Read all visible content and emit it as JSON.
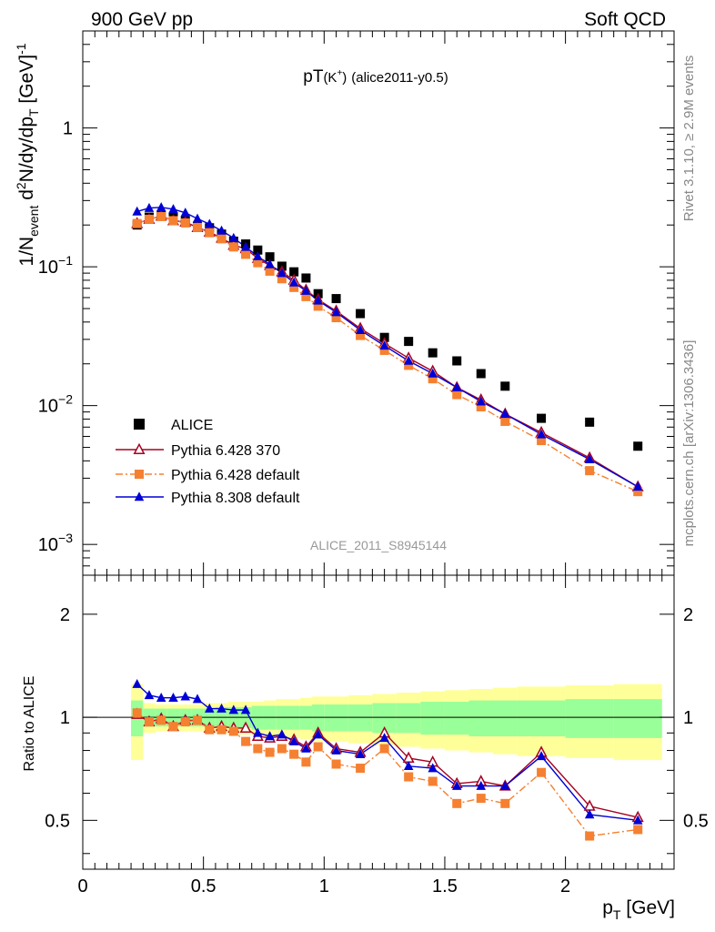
{
  "header": {
    "left": "900 GeV pp",
    "right": "Soft QCD"
  },
  "side_labels": {
    "rivet": "Rivet 3.1.10, ≥ 2.9M events",
    "mcplots": "mcplots.cern.ch [arXiv:1306.3436]"
  },
  "plot_title": {
    "main": "pT",
    "particle": "(K",
    "charge": "+",
    "close": ")",
    "tag": "(alice2011-y0.5)"
  },
  "analysis_label": "ALICE_2011_S8945144",
  "y_axis_label": {
    "a": "1/N",
    "a_sub": "event",
    "b": " d",
    "b_sup": "2",
    "c": "N/dy/dp",
    "c_sub": "T",
    "d": " [GeV]",
    "d_sup": "-1"
  },
  "x_axis_label": {
    "main": "p",
    "sub": "T",
    "unit": " [GeV]"
  },
  "ratio_y_label": "Ratio to ALICE",
  "top_y_ticks": [
    {
      "value": 1,
      "mant": "1",
      "exp": ""
    },
    {
      "value": 0.1,
      "mant": "10",
      "exp": "−1"
    },
    {
      "value": 0.01,
      "mant": "10",
      "exp": "−2"
    },
    {
      "value": 0.001,
      "mant": "10",
      "exp": "−3"
    }
  ],
  "ratio_y_ticks": [
    {
      "value": 2,
      "label": "2"
    },
    {
      "value": 1,
      "label": "1"
    },
    {
      "value": 0.5,
      "label": "0.5"
    }
  ],
  "x_ticks": [
    {
      "value": 0,
      "label": "0"
    },
    {
      "value": 0.5,
      "label": "0.5"
    },
    {
      "value": 1,
      "label": "1"
    },
    {
      "value": 1.5,
      "label": "1.5"
    },
    {
      "value": 2,
      "label": "2"
    }
  ],
  "legend": [
    {
      "label": "ALICE",
      "marker": "square",
      "color": "#000000",
      "line": "none"
    },
    {
      "label": "Pythia 6.428 370",
      "marker": "open-triangle",
      "color": "#a50021",
      "line": "solid"
    },
    {
      "label": "Pythia 6.428 default",
      "marker": "square",
      "color": "#f58031",
      "line": "dashdot"
    },
    {
      "label": "Pythia 8.308 default",
      "marker": "triangle",
      "color": "#0000d6",
      "line": "solid"
    }
  ],
  "colors": {
    "band_inner": "#99ff99",
    "band_outer": "#ffff99",
    "grey_text": "#888888"
  },
  "chart_data": [
    {
      "type": "scatter",
      "scale": "log",
      "xlim": [
        0,
        2.45
      ],
      "ylim": [
        0.0006,
        5
      ],
      "x": [
        0.225,
        0.275,
        0.325,
        0.375,
        0.425,
        0.475,
        0.525,
        0.575,
        0.625,
        0.675,
        0.725,
        0.775,
        0.825,
        0.875,
        0.925,
        0.975,
        1.05,
        1.15,
        1.25,
        1.35,
        1.45,
        1.55,
        1.65,
        1.75,
        1.9,
        2.1,
        2.3
      ],
      "series": [
        {
          "name": "ALICE",
          "values": [
            0.2,
            0.228,
            0.235,
            0.228,
            0.214,
            0.196,
            0.191,
            0.172,
            0.153,
            0.146,
            0.132,
            0.118,
            0.101,
            0.092,
            0.083,
            0.064,
            0.059,
            0.046,
            0.031,
            0.029,
            0.024,
            0.021,
            0.017,
            0.0138,
            0.0081,
            0.0076,
            0.0051
          ]
        },
        {
          "name": "Pythia 6.428 370",
          "values": [
            0.205,
            0.22,
            0.232,
            0.215,
            0.21,
            0.192,
            0.178,
            0.161,
            0.143,
            0.135,
            0.115,
            0.102,
            0.092,
            0.08,
            0.068,
            0.058,
            0.048,
            0.036,
            0.028,
            0.022,
            0.0177,
            0.0135,
            0.011,
            0.0087,
            0.0064,
            0.0042,
            0.0026
          ]
        },
        {
          "name": "Pythia 6.428 default",
          "values": [
            0.205,
            0.22,
            0.23,
            0.215,
            0.207,
            0.192,
            0.176,
            0.159,
            0.139,
            0.123,
            0.107,
            0.093,
            0.082,
            0.071,
            0.061,
            0.052,
            0.043,
            0.032,
            0.025,
            0.0195,
            0.0156,
            0.012,
            0.0098,
            0.0077,
            0.0056,
            0.0034,
            0.0024
          ]
        },
        {
          "name": "Pythia 8.308 default",
          "values": [
            0.25,
            0.265,
            0.268,
            0.26,
            0.245,
            0.222,
            0.203,
            0.182,
            0.161,
            0.139,
            0.119,
            0.104,
            0.09,
            0.077,
            0.067,
            0.057,
            0.047,
            0.035,
            0.027,
            0.021,
            0.017,
            0.0135,
            0.0107,
            0.0087,
            0.0062,
            0.0041,
            0.0026
          ]
        }
      ]
    },
    {
      "type": "line",
      "scale": "log",
      "xlim": [
        0,
        2.45
      ],
      "ylim": [
        0.36,
        2.6
      ],
      "ylabel": "Ratio to ALICE",
      "x": [
        0.225,
        0.275,
        0.325,
        0.375,
        0.425,
        0.475,
        0.525,
        0.575,
        0.625,
        0.675,
        0.725,
        0.775,
        0.825,
        0.875,
        0.925,
        0.975,
        1.05,
        1.15,
        1.25,
        1.35,
        1.45,
        1.55,
        1.65,
        1.75,
        1.9,
        2.1,
        2.3
      ],
      "series": [
        {
          "name": "Pythia 6.428 370",
          "values": [
            1.02,
            0.97,
            0.99,
            0.94,
            0.98,
            0.98,
            0.93,
            0.94,
            0.93,
            0.93,
            0.88,
            0.87,
            0.88,
            0.86,
            0.82,
            0.9,
            0.81,
            0.79,
            0.9,
            0.76,
            0.74,
            0.64,
            0.65,
            0.63,
            0.79,
            0.55,
            0.51
          ]
        },
        {
          "name": "Pythia 6.428 default",
          "values": [
            1.03,
            0.97,
            0.98,
            0.94,
            0.97,
            0.98,
            0.92,
            0.92,
            0.91,
            0.85,
            0.81,
            0.79,
            0.81,
            0.78,
            0.74,
            0.82,
            0.73,
            0.71,
            0.81,
            0.67,
            0.65,
            0.56,
            0.58,
            0.56,
            0.69,
            0.45,
            0.47
          ]
        },
        {
          "name": "Pythia 8.308 default",
          "values": [
            1.25,
            1.16,
            1.14,
            1.14,
            1.15,
            1.13,
            1.06,
            1.06,
            1.05,
            1.05,
            0.9,
            0.88,
            0.89,
            0.85,
            0.81,
            0.89,
            0.8,
            0.78,
            0.87,
            0.72,
            0.71,
            0.63,
            0.63,
            0.63,
            0.77,
            0.52,
            0.5
          ]
        }
      ],
      "bands": {
        "edges": [
          0.2,
          0.25,
          0.3,
          0.35,
          0.4,
          0.45,
          0.5,
          0.55,
          0.6,
          0.65,
          0.7,
          0.75,
          0.8,
          0.85,
          0.9,
          0.95,
          1.0,
          1.1,
          1.2,
          1.3,
          1.4,
          1.5,
          1.6,
          1.7,
          1.8,
          2.0,
          2.2,
          2.4
        ],
        "inner": [
          0.12,
          0.06,
          0.06,
          0.06,
          0.06,
          0.06,
          0.06,
          0.07,
          0.07,
          0.07,
          0.08,
          0.08,
          0.08,
          0.08,
          0.08,
          0.09,
          0.09,
          0.09,
          0.1,
          0.1,
          0.11,
          0.11,
          0.12,
          0.12,
          0.12,
          0.13,
          0.13
        ],
        "outer": [
          0.25,
          0.1,
          0.09,
          0.09,
          0.09,
          0.09,
          0.1,
          0.1,
          0.11,
          0.11,
          0.11,
          0.12,
          0.13,
          0.13,
          0.14,
          0.15,
          0.15,
          0.16,
          0.17,
          0.18,
          0.19,
          0.2,
          0.21,
          0.22,
          0.23,
          0.24,
          0.25
        ]
      }
    }
  ]
}
